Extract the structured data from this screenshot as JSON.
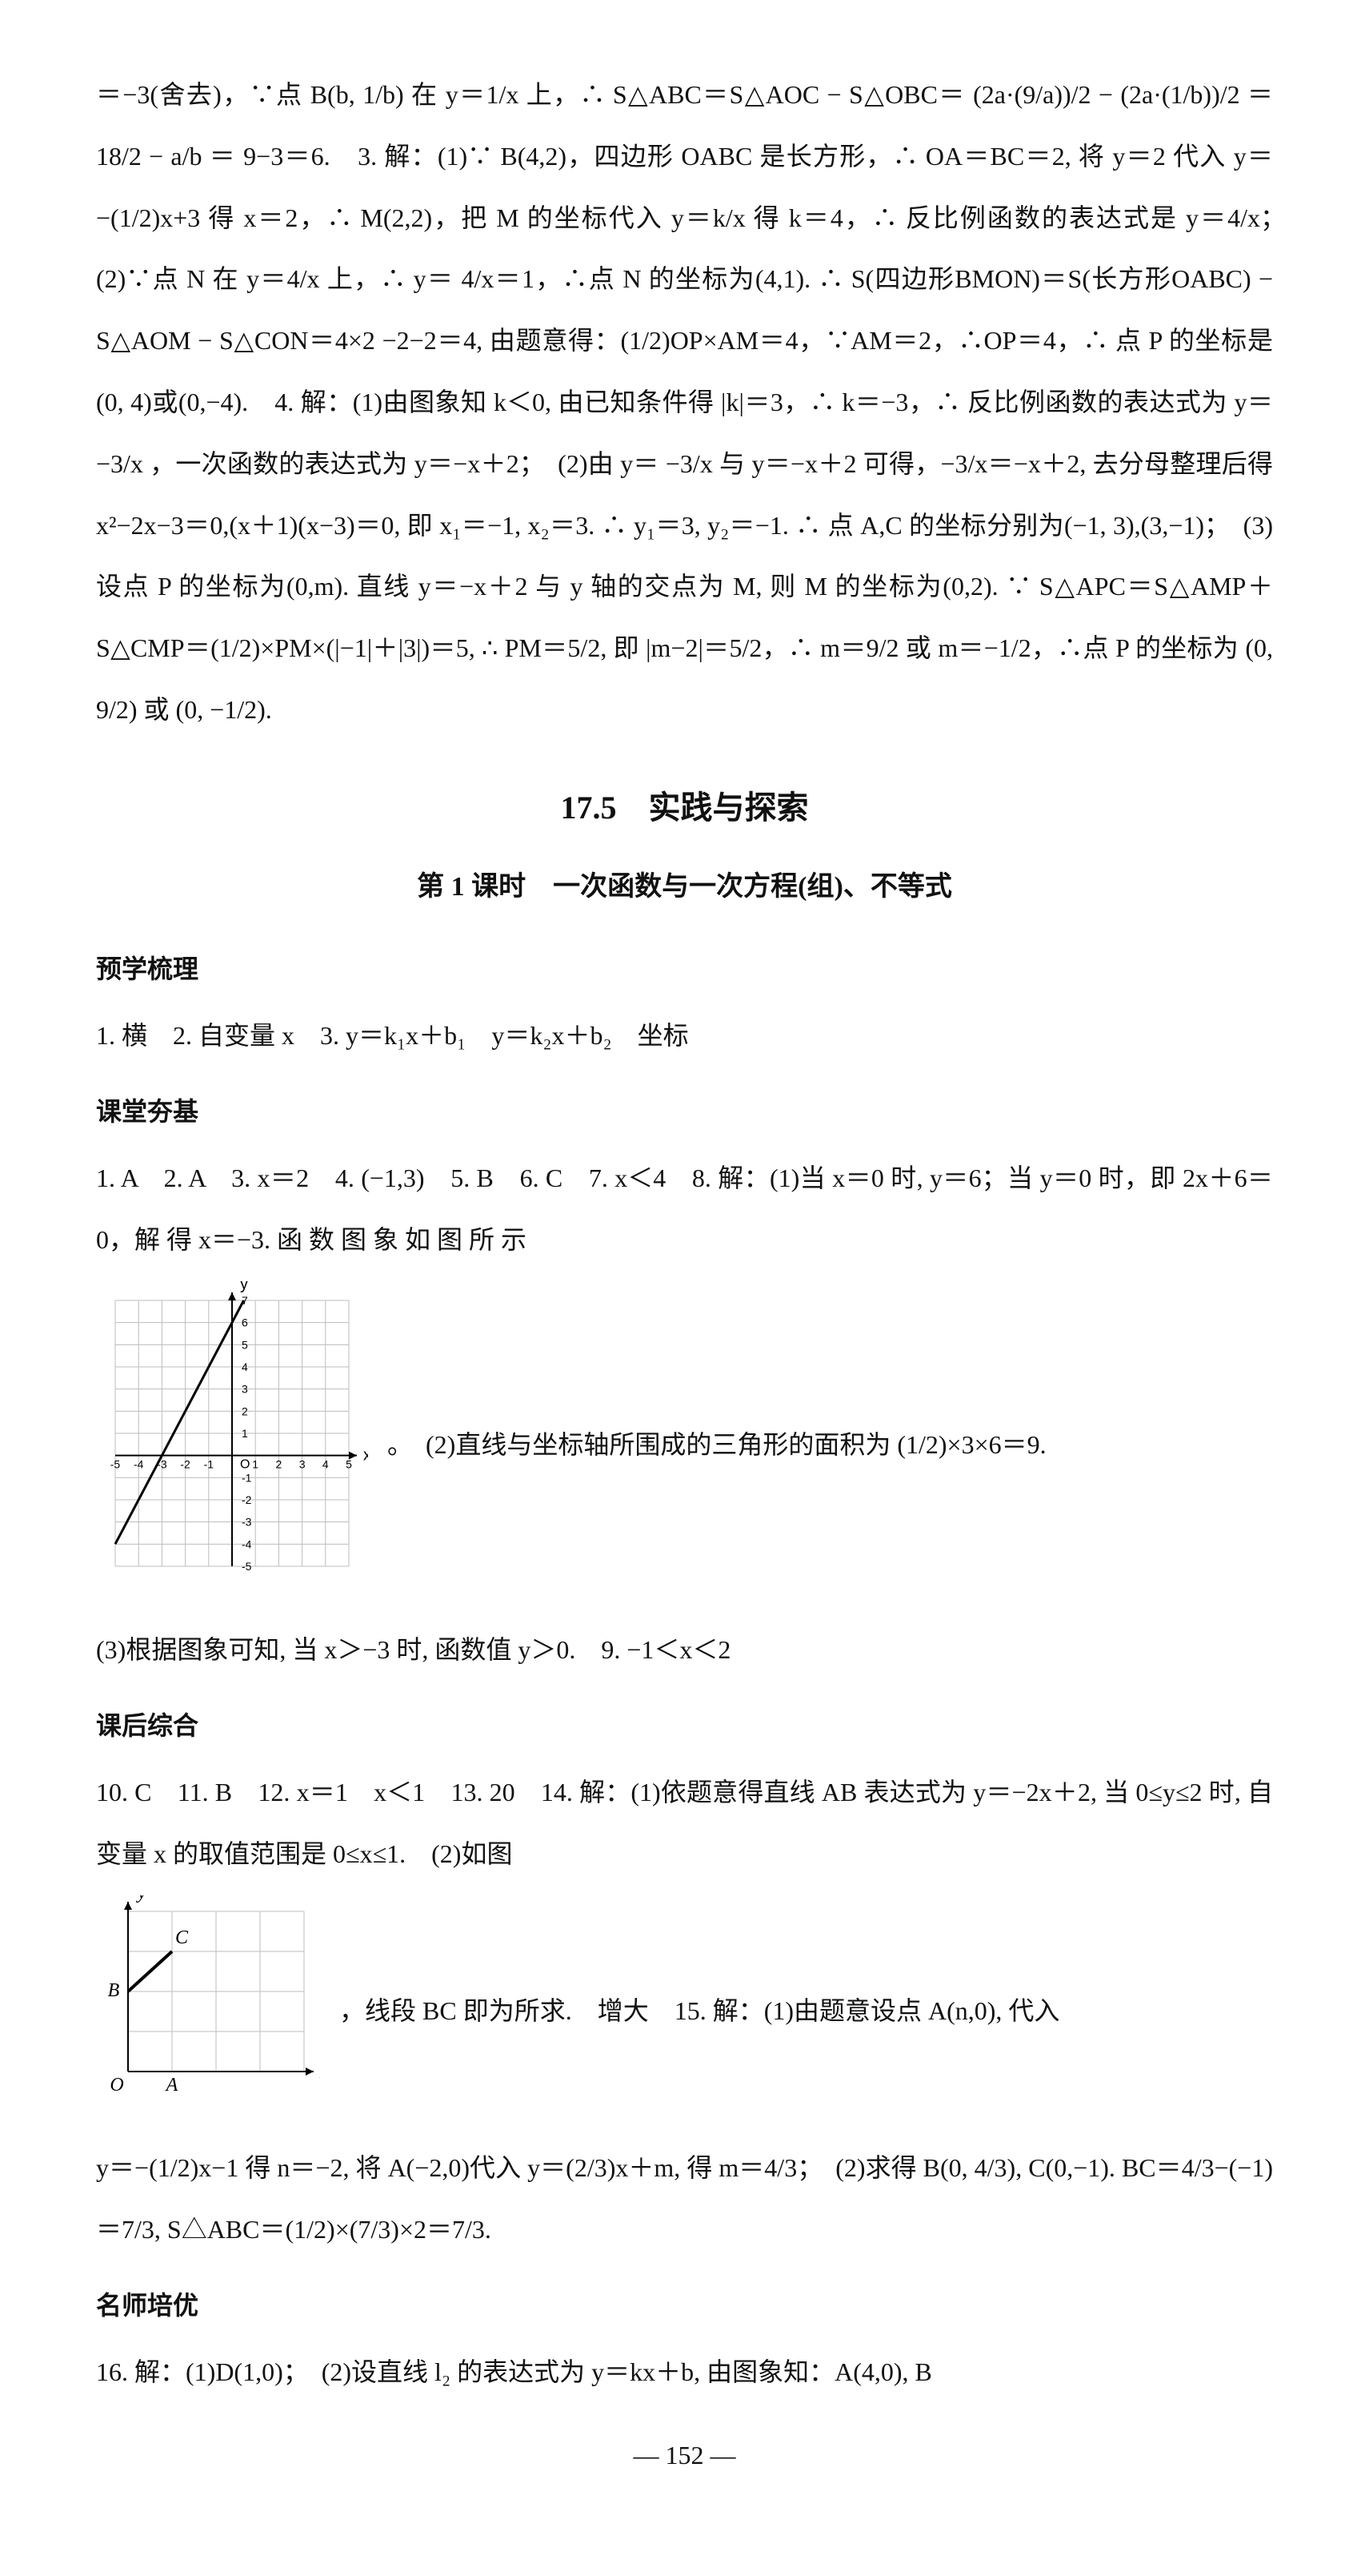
{
  "page": {
    "background_color": "#ffffff",
    "text_color": "#111111",
    "font_family": "SimSun",
    "base_fontsize": 32,
    "line_height": 2.4,
    "page_number": "— 152 —"
  },
  "section": {
    "title": "17.5　实践与探索",
    "subtitle": "第 1 课时　一次函数与一次方程(组)、不等式"
  },
  "labels": {
    "preview": "预学梳理",
    "classroom": "课堂夯基",
    "afterclass": "课后综合",
    "teacher": "名师培优"
  },
  "blocks": {
    "top_continuation": "＝−3(舍去)，∵点 B(b, 1/b) 在 y＝1/x 上，∴ S△ABC＝S△AOC − S△OBC＝ (2a·(9/a))/2 − (2a·(1/b))/2 ＝ 18/2 − a/b ＝ 9−3＝6.　3. 解：(1)∵ B(4,2)，四边形 OABC 是长方形，∴ OA＝BC＝2, 将 y＝2 代入 y＝−(1/2)x+3 得 x＝2，∴ M(2,2)，把 M 的坐标代入 y＝k/x 得 k＝4，∴ 反比例函数的表达式是 y＝4/x；　(2)∵点 N 在 y＝4/x 上，∴ y＝ 4/x＝1，∴点 N 的坐标为(4,1). ∴ S(四边形BMON)＝S(长方形OABC) − S△AOM − S△CON＝4×2 −2−2＝4, 由题意得：(1/2)OP×AM＝4，∵AM＝2，∴OP＝4，∴ 点 P 的坐标是(0, 4)或(0,−4).　4. 解：(1)由图象知 k＜0, 由已知条件得 |k|＝3，∴ k＝−3，∴ 反比例函数的表达式为 y＝−3/x ，一次函数的表达式为 y＝−x＋2；　(2)由 y＝ −3/x 与 y＝−x＋2 可得，−3/x＝−x＋2, 去分母整理后得 x²−2x−3＝0,(x＋1)(x−3)＝0, 即 x₁＝−1, x₂＝3. ∴ y₁＝3, y₂＝−1. ∴ 点 A,C 的坐标分别为(−1, 3),(3,−1)；　(3)设点 P 的坐标为(0,m). 直线 y＝−x＋2 与 y 轴的交点为 M, 则 M 的坐标为(0,2). ∵ S△APC＝S△AMP＋S△CMP＝(1/2)×PM×(|−1|＋|3|)＝5, ∴ PM＝5/2, 即 |m−2|＝5/2，∴ m＝9/2 或 m＝−1/2，∴点 P 的坐标为 (0, 9/2) 或 (0, −1/2).",
    "preview": "1. 横　2. 自变量 x　3. y＝k₁x＋b₁　y＝k₂x＋b₂　坐标",
    "classroom_before_graph": "1. A　2. A　3. x＝2　4. (−1,3)　5. B　6. C　7. x＜4　8. 解：(1)当 x＝0 时, y＝6；当 y＝0 时，即 2x＋6＝0，解 得 x＝−3. 函 数 图 象 如 图 所 示",
    "classroom_graph_right": "。　(2)直线与坐标轴所围成的三角形的面积为 (1/2)×3×6＝9.",
    "classroom_after_graph": "(3)根据图象可知, 当 x＞−3 时, 函数值 y＞0.　9. −1＜x＜2",
    "afterclass_before_graph": "10. C　11. B　12. x＝1　x＜1　13. 20　14. 解：(1)依题意得直线 AB 表达式为 y＝−2x＋2, 当 0≤y≤2 时, 自变量 x 的取值范围是 0≤x≤1.　(2)如图",
    "afterclass_graph_right": "，线段 BC 即为所求.　增大　15. 解：(1)由题意设点 A(n,0), 代入",
    "afterclass_after_graph": "y＝−(1/2)x−1 得 n＝−2, 将 A(−2,0)代入 y＝(2/3)x＋m, 得 m＝4/3；　(2)求得 B(0, 4/3), C(0,−1). BC＝4/3−(−1)＝7/3, S△ABC＝(1/2)×(7/3)×2＝7/3.",
    "teacher": "16. 解：(1)D(1,0)；　(2)设直线 l₂ 的表达式为 y＝kx＋b, 由图象知：A(4,0), B"
  },
  "graph1": {
    "type": "line",
    "description": "函数 y=2x+6 图象",
    "xlim": [
      -5,
      5
    ],
    "ylim": [
      -5,
      7
    ],
    "xtick_step": 1,
    "ytick_step": 1,
    "x_points": [
      0,
      1,
      2,
      3,
      4,
      5,
      -1,
      -2,
      -3,
      -4,
      -5
    ],
    "y_points": [
      0,
      1,
      2,
      3,
      4,
      5,
      6,
      7,
      -1,
      -2,
      -3,
      -4,
      -5
    ],
    "grid_on": true,
    "grid_color": "#bdbdbd",
    "axis_color": "#000000",
    "line_color": "#000000",
    "line_width": 3,
    "line": {
      "x1": -5,
      "y1": -4,
      "x2": 0.5,
      "y2": 7
    },
    "background_color": "#ffffff",
    "x_label": "x",
    "y_label": "y"
  },
  "graph2": {
    "type": "line",
    "description": "直线 AB, 线段 BC",
    "xlim": [
      0,
      4
    ],
    "ylim": [
      0,
      4
    ],
    "xtick_step": 1,
    "ytick_step": 1,
    "grid_on": true,
    "grid_color": "#bdbdbd",
    "axis_color": "#000000",
    "line_color": "#000000",
    "line_width": 3,
    "background_color": "#ffffff",
    "x_label": "x",
    "y_label": "y",
    "labels": {
      "O": "O",
      "A": "A",
      "B": "B",
      "C": "C"
    },
    "points": {
      "O": [
        0,
        0
      ],
      "A": [
        1,
        0
      ],
      "B": [
        0,
        2
      ],
      "C": [
        1,
        3
      ]
    },
    "segments": [
      {
        "from": "B",
        "to": "C",
        "width": 4
      }
    ]
  }
}
